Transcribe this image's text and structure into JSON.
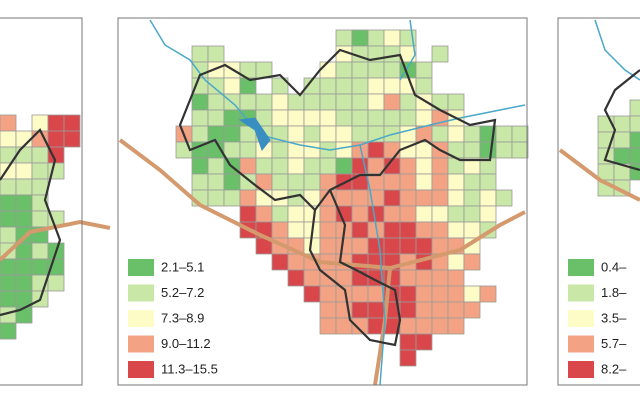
{
  "maps": [
    {
      "grid": [
        "4.355",
        "33455",
        "2225.",
        "3322.",
        "222..",
        "112..",
        "1122.",
        "211..",
        "2121.",
        "1111.",
        "1122.",
        "112..",
        "21...",
        "1...."
      ],
      "legend": []
    },
    {
      "grid": [
        "...........21232.......",
        "..22.......32223.2.....",
        "..23322...3222212......",
        "..2231.2.22223332......",
        "..12222322222342322....",
        "..22112333322222343....",
        ".4211222323322234232122",
        ".2112232332345433422122",
        "..1214223221545434232..",
        "..2212422245544434322..",
        "..22243323444454443232.",
        ".....5423345454433223..",
        ".....5543344545544332..",
        "......54434445555443...",
        ".......5444455545434...",
        "........54445554444....",
        ".........544445544434..",
        "..........4455554444...",
        "..........444554444....",
        "...............55......",
        "...............5......."
      ],
      "legend": [
        "2.1–5.1",
        "5.2–7.2",
        "7.3–8.9",
        "9.0–11.2",
        "11.3–15.5"
      ]
    },
    {
      "grid": [
        "..2",
        "222",
        "221",
        "211",
        "221",
        "22."
      ],
      "legend": [
        "0.4–",
        "1.8–",
        "3.5–",
        "5.7–",
        "8.2–"
      ]
    }
  ],
  "colors": [
    "#6abf69",
    "#c9e7a6",
    "#fdfbc6",
    "#f3a383",
    "#d9474a"
  ]
}
